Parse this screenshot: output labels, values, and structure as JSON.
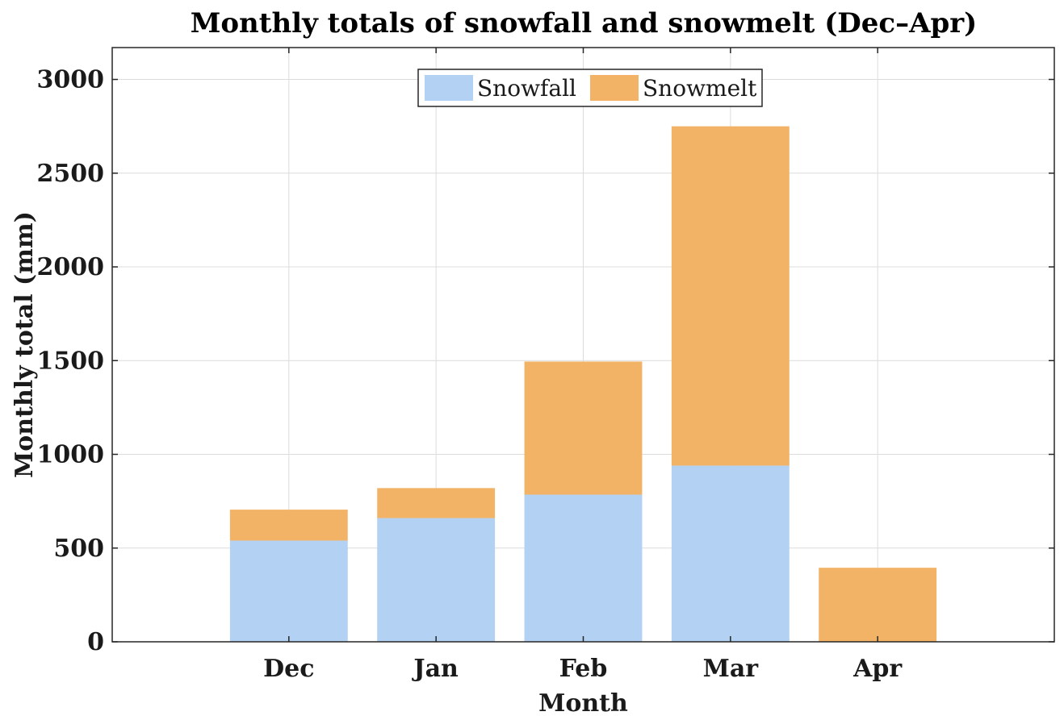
{
  "chart_data": {
    "type": "bar",
    "stacked": true,
    "title": "Monthly totals of snowfall and snowmelt (Dec–Apr)",
    "xlabel": "Month",
    "ylabel": "Monthly total (mm)",
    "categories": [
      "Dec",
      "Jan",
      "Feb",
      "Mar",
      "Apr"
    ],
    "series": [
      {
        "name": "Snowfall",
        "color": "#b3d1f2",
        "values": [
          540,
          660,
          785,
          940,
          0
        ]
      },
      {
        "name": "Snowmelt",
        "color": "#f2b366",
        "values": [
          165,
          160,
          710,
          1810,
          395
        ]
      }
    ],
    "ylim": [
      0,
      3170
    ],
    "yticks": [
      0,
      500,
      1000,
      1500,
      2000,
      2500,
      3000
    ],
    "grid": true,
    "legend_position": "top-center"
  }
}
